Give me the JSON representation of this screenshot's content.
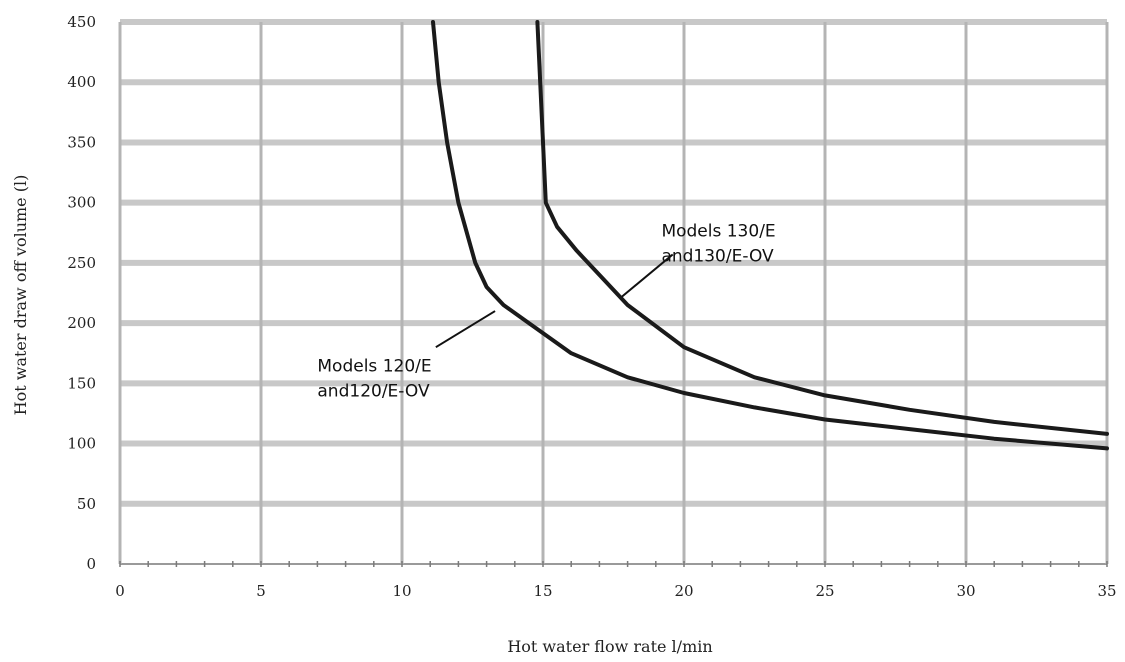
{
  "chart_data": {
    "type": "line",
    "title": "",
    "xlabel": "Hot water flow rate l/min",
    "ylabel": "Hot water draw off volume (l)",
    "xlim": [
      0,
      35
    ],
    "ylim": [
      0,
      450
    ],
    "x_ticks": [
      0,
      5,
      10,
      15,
      20,
      25,
      30,
      35
    ],
    "y_ticks": [
      0,
      50,
      100,
      150,
      200,
      250,
      300,
      350,
      400,
      450
    ],
    "grid": true,
    "legend": "none",
    "series": [
      {
        "name": "",
        "color": "#1a1a1a",
        "points": [
          {
            "x": 11.1,
            "y": 450
          },
          {
            "x": 11.3,
            "y": 400
          },
          {
            "x": 11.6,
            "y": 350
          },
          {
            "x": 12.0,
            "y": 300
          },
          {
            "x": 12.6,
            "y": 250
          },
          {
            "x": 13.0,
            "y": 230
          },
          {
            "x": 13.6,
            "y": 215
          },
          {
            "x": 14.5,
            "y": 200
          },
          {
            "x": 16.0,
            "y": 175
          },
          {
            "x": 18.0,
            "y": 155
          },
          {
            "x": 20.0,
            "y": 142
          },
          {
            "x": 22.5,
            "y": 130
          },
          {
            "x": 25.0,
            "y": 120
          },
          {
            "x": 28.0,
            "y": 112
          },
          {
            "x": 31.0,
            "y": 104
          },
          {
            "x": 35.0,
            "y": 96
          }
        ]
      },
      {
        "name": "",
        "color": "#1a1a1a",
        "points": [
          {
            "x": 14.8,
            "y": 450
          },
          {
            "x": 14.9,
            "y": 400
          },
          {
            "x": 15.0,
            "y": 350
          },
          {
            "x": 15.1,
            "y": 300
          },
          {
            "x": 15.5,
            "y": 280
          },
          {
            "x": 16.2,
            "y": 260
          },
          {
            "x": 17.0,
            "y": 240
          },
          {
            "x": 18.0,
            "y": 215
          },
          {
            "x": 20.0,
            "y": 180
          },
          {
            "x": 22.5,
            "y": 155
          },
          {
            "x": 25.0,
            "y": 140
          },
          {
            "x": 28.0,
            "y": 128
          },
          {
            "x": 31.0,
            "y": 118
          },
          {
            "x": 35.0,
            "y": 108
          }
        ]
      }
    ],
    "annotations": [
      {
        "lines": [
          "Models 120/E",
          "and120/E-OV"
        ],
        "series_index": 0,
        "at": {
          "x": 13.3,
          "y": 210
        },
        "text_at": {
          "x": 7.0,
          "y": 160
        },
        "leader_from": {
          "x": 11.2,
          "y": 180
        }
      },
      {
        "lines": [
          "Models 130/E",
          "and130/E-OV"
        ],
        "series_index": 1,
        "at": {
          "x": 17.8,
          "y": 222
        },
        "text_at": {
          "x": 19.2,
          "y": 272
        },
        "leader_from": {
          "x": 19.6,
          "y": 257
        }
      }
    ]
  }
}
